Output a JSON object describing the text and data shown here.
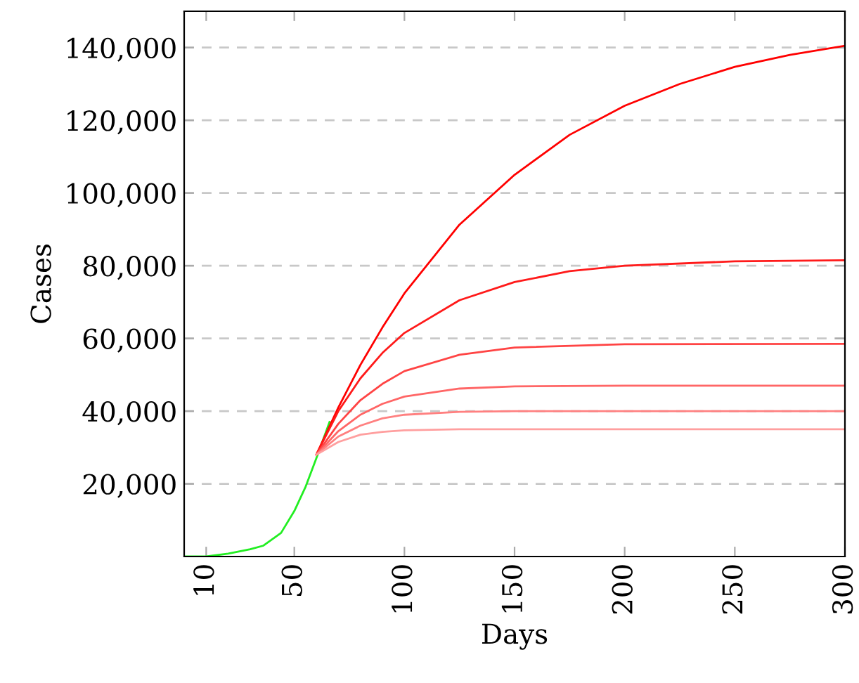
{
  "chart_data": {
    "type": "line",
    "xlabel": "Days",
    "ylabel": "Cases",
    "xlim": [
      0,
      300
    ],
    "ylim": [
      0,
      150000
    ],
    "xticks": [
      10,
      50,
      100,
      150,
      200,
      250,
      300
    ],
    "yticks": [
      {
        "value": 20000,
        "label": "20,000"
      },
      {
        "value": 40000,
        "label": "40,000"
      },
      {
        "value": 60000,
        "label": "60,000"
      },
      {
        "value": 80000,
        "label": "80,000"
      },
      {
        "value": 100000,
        "label": "100,000"
      },
      {
        "value": 120000,
        "label": "120,000"
      },
      {
        "value": 140000,
        "label": "140,000"
      }
    ],
    "grid": "y",
    "line_style": "solid",
    "marker": "none",
    "series": [
      {
        "color": "#22ee22",
        "x": [
          0,
          10,
          20,
          30,
          36,
          44,
          50,
          55,
          60,
          66
        ],
        "values": [
          0,
          0,
          800,
          2000,
          3000,
          6500,
          12500,
          19000,
          27000,
          37000
        ]
      },
      {
        "color": "#ff0000",
        "x": [
          60,
          70,
          80,
          90,
          100,
          125,
          150,
          175,
          200,
          225,
          250,
          275,
          300
        ],
        "values": [
          28000,
          41000,
          52700,
          63000,
          72400,
          91300,
          105000,
          116000,
          124000,
          130000,
          134700,
          138000,
          140500
        ]
      },
      {
        "color": "#ff1a1a",
        "x": [
          60,
          70,
          80,
          90,
          100,
          125,
          150,
          175,
          200,
          250,
          300
        ],
        "values": [
          28000,
          40000,
          49000,
          56000,
          61500,
          70500,
          75500,
          78500,
          80000,
          81200,
          81500
        ]
      },
      {
        "color": "#ff4444",
        "x": [
          60,
          70,
          80,
          90,
          100,
          125,
          150,
          200,
          300
        ],
        "values": [
          28000,
          36500,
          43000,
          47500,
          51000,
          55500,
          57500,
          58400,
          58500
        ]
      },
      {
        "color": "#ff6666",
        "x": [
          60,
          70,
          80,
          90,
          100,
          125,
          150,
          200,
          300
        ],
        "values": [
          28000,
          34500,
          39000,
          42000,
          44000,
          46200,
          46800,
          47000,
          47000
        ]
      },
      {
        "color": "#ff8080",
        "x": [
          60,
          70,
          80,
          90,
          100,
          125,
          150,
          300
        ],
        "values": [
          28000,
          33000,
          36000,
          38000,
          39000,
          39800,
          40000,
          40000
        ]
      },
      {
        "color": "#ff9f9f",
        "x": [
          60,
          70,
          80,
          90,
          100,
          125,
          300
        ],
        "values": [
          28000,
          31500,
          33500,
          34300,
          34700,
          35000,
          35000
        ]
      }
    ]
  }
}
